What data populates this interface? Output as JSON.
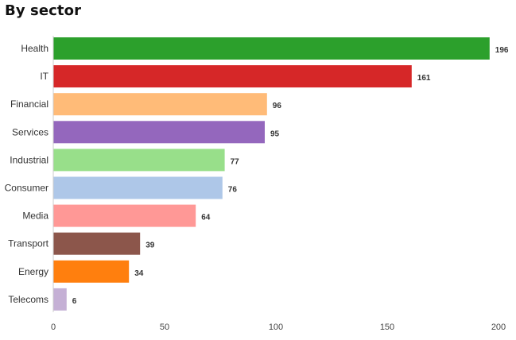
{
  "chart_data": {
    "type": "bar",
    "orientation": "horizontal",
    "title": "By sector",
    "categories": [
      "Health",
      "IT",
      "Financial",
      "Services",
      "Industrial",
      "Consumer",
      "Media",
      "Transport",
      "Energy",
      "Telecoms"
    ],
    "values": [
      196,
      161,
      96,
      95,
      77,
      76,
      64,
      39,
      34,
      6
    ],
    "colors": [
      "#2ca02c",
      "#d62728",
      "#ffbb78",
      "#9467bd",
      "#98df8a",
      "#aec7e8",
      "#ff9896",
      "#8c564b",
      "#ff7f0e",
      "#c5b0d5"
    ],
    "xlim": [
      0,
      200
    ],
    "xticks": [
      0,
      50,
      100,
      150,
      200
    ],
    "xlabel": "",
    "ylabel": "",
    "grid": false,
    "legend": "none",
    "data_labels": true
  }
}
